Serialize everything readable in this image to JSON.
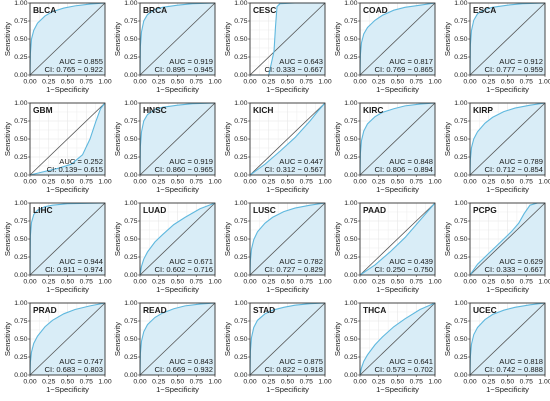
{
  "chart_data": {
    "type": "line",
    "xlabel": "1−Specificity",
    "ylabel": "Sensitivity",
    "xlim": [
      0,
      1
    ],
    "ylim": [
      0,
      1
    ],
    "x_ticks": [
      "0.00",
      "0.25",
      "0.50",
      "0.75",
      "1.00"
    ],
    "y_ticks": [
      "0.00",
      "0.25",
      "0.50",
      "0.75",
      "1.00"
    ],
    "grid": true,
    "colors": {
      "curve": "#5fb8de",
      "fill": "#d9edf7",
      "diagonal": "#555555",
      "grid": "#e6e6e6"
    },
    "panels": [
      {
        "title": "BLCA",
        "auc": "AUC = 0.855",
        "ci": "CI: 0.765 − 0.922",
        "roc": [
          [
            0,
            0
          ],
          [
            0.005,
            0.3
          ],
          [
            0.02,
            0.5
          ],
          [
            0.05,
            0.62
          ],
          [
            0.1,
            0.72
          ],
          [
            0.2,
            0.82
          ],
          [
            0.3,
            0.88
          ],
          [
            0.45,
            0.93
          ],
          [
            0.6,
            0.96
          ],
          [
            0.8,
            0.985
          ],
          [
            1,
            1
          ]
        ]
      },
      {
        "title": "BRCA",
        "auc": "AUC = 0.919",
        "ci": "CI: 0.895 − 0.945",
        "roc": [
          [
            0,
            0
          ],
          [
            0.005,
            0.4
          ],
          [
            0.02,
            0.6
          ],
          [
            0.05,
            0.75
          ],
          [
            0.1,
            0.84
          ],
          [
            0.2,
            0.91
          ],
          [
            0.3,
            0.94
          ],
          [
            0.5,
            0.97
          ],
          [
            0.7,
            0.99
          ],
          [
            1,
            1
          ]
        ]
      },
      {
        "title": "CESC",
        "auc": "AUC = 0.643",
        "ci": "CI: 0.333 − 0.667",
        "roc": [
          [
            0,
            0
          ],
          [
            0.25,
            0.0
          ],
          [
            0.32,
            0.33
          ],
          [
            0.34,
            0.67
          ],
          [
            0.36,
            0.95
          ],
          [
            0.4,
            0.99
          ],
          [
            0.6,
            1
          ],
          [
            1,
            1
          ]
        ]
      },
      {
        "title": "COAD",
        "auc": "AUC = 0.817",
        "ci": "CI: 0.769 − 0.865",
        "roc": [
          [
            0,
            0
          ],
          [
            0.005,
            0.28
          ],
          [
            0.02,
            0.45
          ],
          [
            0.05,
            0.57
          ],
          [
            0.1,
            0.66
          ],
          [
            0.2,
            0.76
          ],
          [
            0.3,
            0.83
          ],
          [
            0.45,
            0.9
          ],
          [
            0.6,
            0.94
          ],
          [
            0.8,
            0.97
          ],
          [
            1,
            1
          ]
        ]
      },
      {
        "title": "ESCA",
        "auc": "AUC = 0.912",
        "ci": "CI: 0.777 − 0.959",
        "roc": [
          [
            0,
            0
          ],
          [
            0.005,
            0.42
          ],
          [
            0.02,
            0.62
          ],
          [
            0.05,
            0.76
          ],
          [
            0.1,
            0.85
          ],
          [
            0.2,
            0.91
          ],
          [
            0.3,
            0.94
          ],
          [
            0.5,
            0.97
          ],
          [
            0.7,
            0.99
          ],
          [
            1,
            1
          ]
        ]
      },
      {
        "title": "GBM",
        "auc": "AUC = 0.252",
        "ci": "CI: 0.139− 0.615",
        "roc": [
          [
            0,
            0
          ],
          [
            0.2,
            0.05
          ],
          [
            0.4,
            0.1
          ],
          [
            0.55,
            0.15
          ],
          [
            0.7,
            0.28
          ],
          [
            0.8,
            0.5
          ],
          [
            0.88,
            0.75
          ],
          [
            0.94,
            0.92
          ],
          [
            1,
            1
          ]
        ]
      },
      {
        "title": "HNSC",
        "auc": "AUC = 0.919",
        "ci": "CI: 0.860 − 0.965",
        "roc": [
          [
            0,
            0
          ],
          [
            0.005,
            0.4
          ],
          [
            0.02,
            0.6
          ],
          [
            0.05,
            0.75
          ],
          [
            0.1,
            0.84
          ],
          [
            0.2,
            0.91
          ],
          [
            0.3,
            0.94
          ],
          [
            0.5,
            0.97
          ],
          [
            0.7,
            0.99
          ],
          [
            1,
            1
          ]
        ]
      },
      {
        "title": "KICH",
        "auc": "AUC = 0.447",
        "ci": "CI: 0.312 − 0.567",
        "roc": [
          [
            0,
            0
          ],
          [
            0.2,
            0.15
          ],
          [
            0.4,
            0.33
          ],
          [
            0.6,
            0.52
          ],
          [
            0.8,
            0.75
          ],
          [
            0.9,
            0.88
          ],
          [
            1,
            1
          ]
        ]
      },
      {
        "title": "KIRC",
        "auc": "AUC = 0.848",
        "ci": "CI: 0.806 − 0.894",
        "roc": [
          [
            0,
            0
          ],
          [
            0.005,
            0.3
          ],
          [
            0.02,
            0.48
          ],
          [
            0.05,
            0.61
          ],
          [
            0.1,
            0.71
          ],
          [
            0.2,
            0.81
          ],
          [
            0.3,
            0.87
          ],
          [
            0.45,
            0.92
          ],
          [
            0.6,
            0.96
          ],
          [
            0.8,
            0.985
          ],
          [
            1,
            1
          ]
        ]
      },
      {
        "title": "KIRP",
        "auc": "AUC = 0.789",
        "ci": "CI: 0.712 − 0.854",
        "roc": [
          [
            0,
            0
          ],
          [
            0.005,
            0.22
          ],
          [
            0.02,
            0.38
          ],
          [
            0.05,
            0.5
          ],
          [
            0.1,
            0.6
          ],
          [
            0.2,
            0.72
          ],
          [
            0.3,
            0.8
          ],
          [
            0.45,
            0.88
          ],
          [
            0.6,
            0.93
          ],
          [
            0.8,
            0.97
          ],
          [
            1,
            1
          ]
        ]
      },
      {
        "title": "LIHC",
        "auc": "AUC = 0.944",
        "ci": "CI: 0.911 − 0.974",
        "roc": [
          [
            0,
            0
          ],
          [
            0.005,
            0.55
          ],
          [
            0.02,
            0.73
          ],
          [
            0.05,
            0.84
          ],
          [
            0.1,
            0.9
          ],
          [
            0.2,
            0.95
          ],
          [
            0.3,
            0.97
          ],
          [
            0.5,
            0.99
          ],
          [
            1,
            1
          ]
        ]
      },
      {
        "title": "LUAD",
        "auc": "AUC = 0.671",
        "ci": "CI: 0.602 − 0.716",
        "roc": [
          [
            0,
            0
          ],
          [
            0.02,
            0.12
          ],
          [
            0.05,
            0.22
          ],
          [
            0.1,
            0.32
          ],
          [
            0.2,
            0.46
          ],
          [
            0.3,
            0.56
          ],
          [
            0.45,
            0.7
          ],
          [
            0.6,
            0.8
          ],
          [
            0.8,
            0.92
          ],
          [
            1,
            1
          ]
        ]
      },
      {
        "title": "LUSC",
        "auc": "AUC = 0.782",
        "ci": "CI: 0.727 − 0.829",
        "roc": [
          [
            0,
            0
          ],
          [
            0.005,
            0.2
          ],
          [
            0.02,
            0.36
          ],
          [
            0.05,
            0.49
          ],
          [
            0.1,
            0.6
          ],
          [
            0.2,
            0.72
          ],
          [
            0.3,
            0.8
          ],
          [
            0.45,
            0.88
          ],
          [
            0.6,
            0.93
          ],
          [
            0.8,
            0.97
          ],
          [
            1,
            1
          ]
        ]
      },
      {
        "title": "PAAD",
        "auc": "AUC = 0.439",
        "ci": "CI: 0.250 − 0.750",
        "roc": [
          [
            0,
            0
          ],
          [
            0.2,
            0.14
          ],
          [
            0.4,
            0.32
          ],
          [
            0.6,
            0.52
          ],
          [
            0.75,
            0.7
          ],
          [
            0.9,
            0.88
          ],
          [
            1,
            1
          ]
        ]
      },
      {
        "title": "PCPG",
        "auc": "AUC = 0.629",
        "ci": "CI: 0.333 − 0.667",
        "roc": [
          [
            0,
            0
          ],
          [
            0.1,
            0.15
          ],
          [
            0.25,
            0.3
          ],
          [
            0.4,
            0.45
          ],
          [
            0.55,
            0.6
          ],
          [
            0.65,
            0.72
          ],
          [
            0.72,
            0.85
          ],
          [
            0.8,
            0.97
          ],
          [
            0.9,
            1
          ],
          [
            1,
            1
          ]
        ]
      },
      {
        "title": "PRAD",
        "auc": "AUC = 0.747",
        "ci": "CI: 0.683 − 0.803",
        "roc": [
          [
            0,
            0
          ],
          [
            0.005,
            0.18
          ],
          [
            0.02,
            0.32
          ],
          [
            0.05,
            0.44
          ],
          [
            0.1,
            0.54
          ],
          [
            0.2,
            0.67
          ],
          [
            0.3,
            0.76
          ],
          [
            0.45,
            0.85
          ],
          [
            0.6,
            0.91
          ],
          [
            0.8,
            0.96
          ],
          [
            1,
            1
          ]
        ]
      },
      {
        "title": "READ",
        "auc": "AUC = 0.843",
        "ci": "CI: 0.669 − 0.932",
        "roc": [
          [
            0,
            0
          ],
          [
            0.005,
            0.3
          ],
          [
            0.02,
            0.47
          ],
          [
            0.05,
            0.6
          ],
          [
            0.1,
            0.7
          ],
          [
            0.2,
            0.8
          ],
          [
            0.3,
            0.86
          ],
          [
            0.45,
            0.92
          ],
          [
            0.6,
            0.96
          ],
          [
            0.8,
            0.985
          ],
          [
            1,
            1
          ]
        ]
      },
      {
        "title": "STAD",
        "auc": "AUC = 0.875",
        "ci": "CI: 0.822 − 0.918",
        "roc": [
          [
            0,
            0
          ],
          [
            0.005,
            0.33
          ],
          [
            0.02,
            0.52
          ],
          [
            0.05,
            0.66
          ],
          [
            0.1,
            0.76
          ],
          [
            0.2,
            0.85
          ],
          [
            0.3,
            0.9
          ],
          [
            0.45,
            0.94
          ],
          [
            0.6,
            0.97
          ],
          [
            0.8,
            0.99
          ],
          [
            1,
            1
          ]
        ]
      },
      {
        "title": "THCA",
        "auc": "AUC = 0.641",
        "ci": "CI: 0.573 − 0.702",
        "roc": [
          [
            0,
            0
          ],
          [
            0.02,
            0.1
          ],
          [
            0.05,
            0.19
          ],
          [
            0.1,
            0.28
          ],
          [
            0.2,
            0.42
          ],
          [
            0.3,
            0.53
          ],
          [
            0.45,
            0.67
          ],
          [
            0.6,
            0.78
          ],
          [
            0.8,
            0.91
          ],
          [
            1,
            1
          ]
        ]
      },
      {
        "title": "UCEC",
        "auc": "AUC = 0.818",
        "ci": "CI: 0.742 − 0.888",
        "roc": [
          [
            0,
            0
          ],
          [
            0.005,
            0.26
          ],
          [
            0.02,
            0.43
          ],
          [
            0.05,
            0.56
          ],
          [
            0.1,
            0.66
          ],
          [
            0.2,
            0.77
          ],
          [
            0.3,
            0.84
          ],
          [
            0.45,
            0.9
          ],
          [
            0.6,
            0.94
          ],
          [
            0.8,
            0.975
          ],
          [
            1,
            1
          ]
        ]
      }
    ]
  }
}
